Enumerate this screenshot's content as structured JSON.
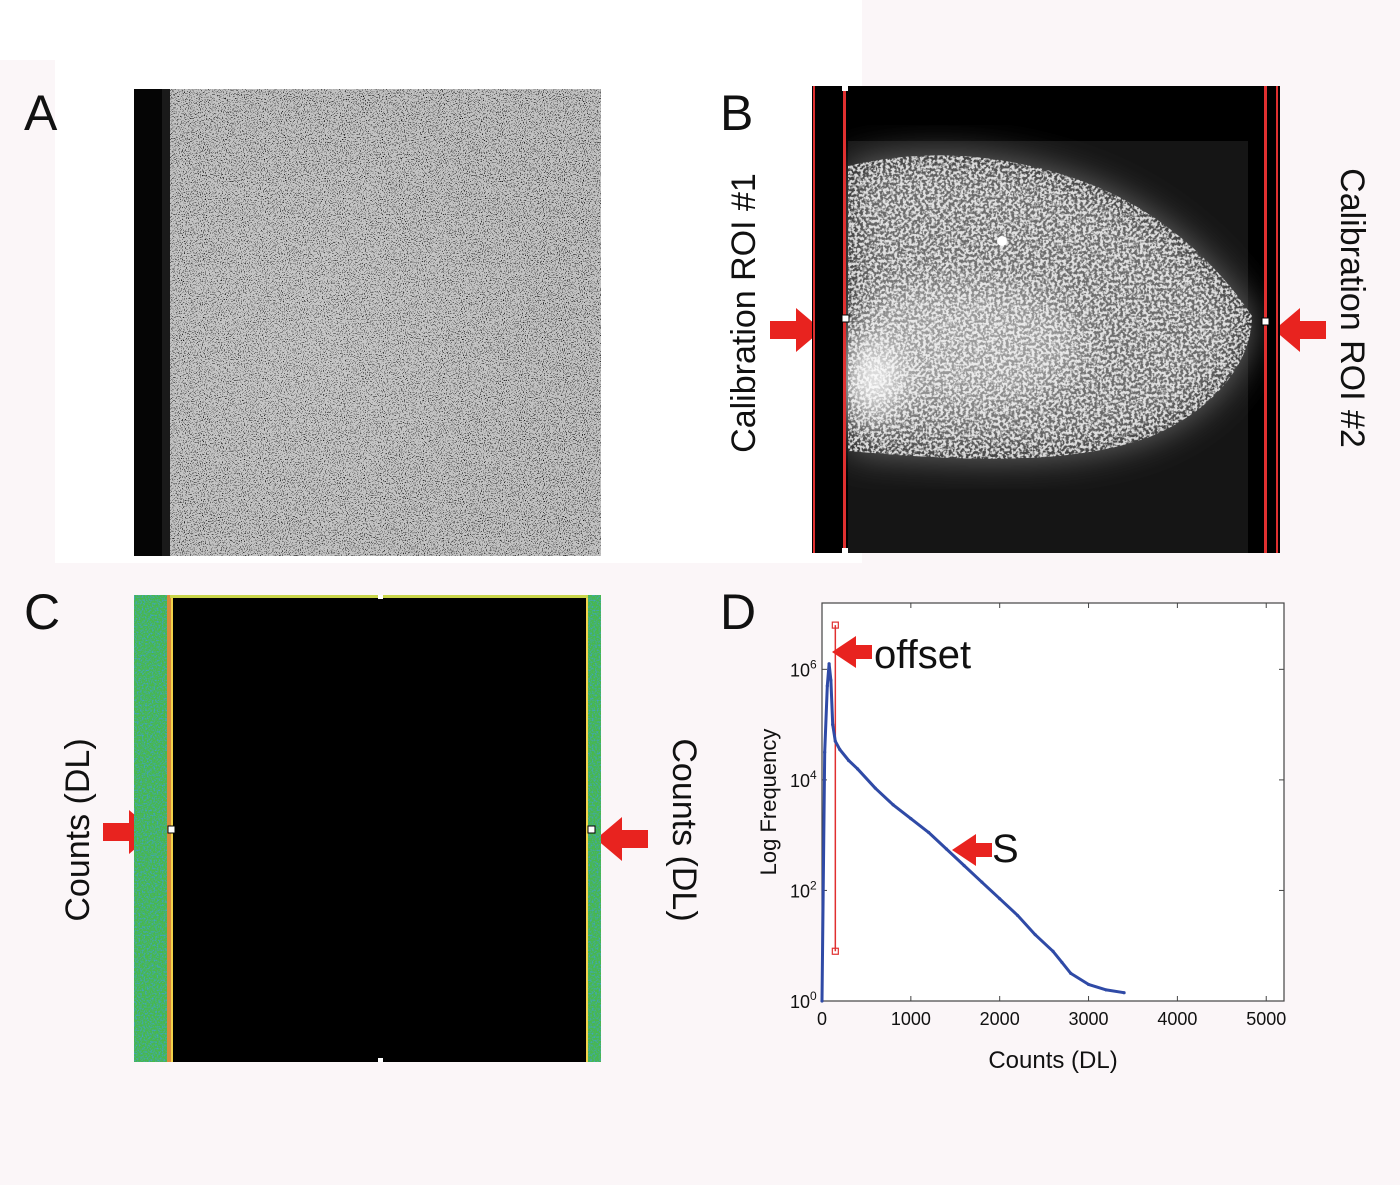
{
  "panels": {
    "a": {
      "letter": "A"
    },
    "b": {
      "letter": "B",
      "left_label": "Calibration ROI #1",
      "right_label": "Calibration ROI #2"
    },
    "c": {
      "letter": "C",
      "left_label": "Counts (DL)",
      "right_label": "Counts (DL)"
    },
    "d": {
      "letter": "D",
      "offset_label": "offset",
      "s_label": "S"
    }
  },
  "colors": {
    "arrow": "#e8231f",
    "roi": "#e03030",
    "histogram": "#2f4aa6"
  },
  "chart_data": {
    "type": "line",
    "title": "",
    "xlabel": "Counts (DL)",
    "ylabel": "Log Frequency",
    "xlim": [
      0,
      5200
    ],
    "ylim_log10": [
      0,
      7.2
    ],
    "yscale": "log",
    "grid": false,
    "x_ticks": [
      "0",
      "1000",
      "2000",
      "3000",
      "4000",
      "5000"
    ],
    "y_ticks": [
      {
        "base": "10",
        "exp": "0"
      },
      {
        "base": "10",
        "exp": "2"
      },
      {
        "base": "10",
        "exp": "4"
      },
      {
        "base": "10",
        "exp": "6"
      }
    ],
    "series": [
      {
        "name": "",
        "x": [
          0,
          30,
          60,
          80,
          100,
          120,
          150,
          200,
          300,
          400,
          600,
          800,
          1000,
          1200,
          1400,
          1600,
          1800,
          2000,
          2200,
          2400,
          2600,
          2700,
          2800,
          3000,
          3200,
          3400
        ],
        "log10_y": [
          0,
          4.5,
          5.7,
          6.1,
          5.8,
          5.0,
          4.7,
          4.55,
          4.35,
          4.2,
          3.85,
          3.55,
          3.3,
          3.05,
          2.75,
          2.45,
          2.15,
          1.85,
          1.55,
          1.2,
          0.9,
          0.7,
          0.5,
          0.3,
          0.2,
          0.15
        ]
      }
    ],
    "offset_marker": {
      "x": 150,
      "log10_y_top": 6.8,
      "log10_y_bottom": 0.9
    }
  }
}
